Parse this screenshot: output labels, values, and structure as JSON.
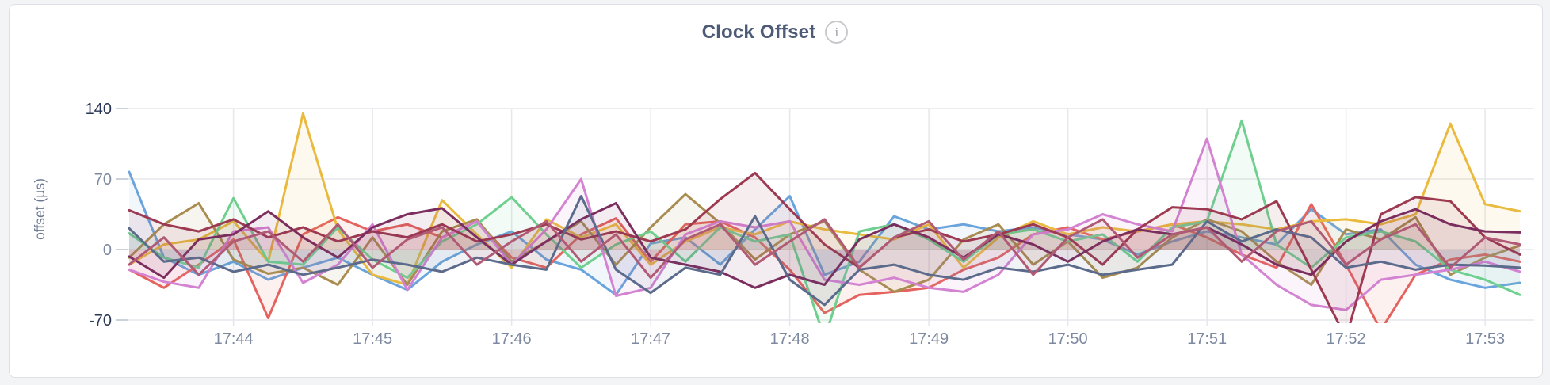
{
  "panel": {
    "title": "Clock Offset",
    "info_icon_glyph": "i"
  },
  "colors": {
    "page_bg": "#f3f4f6",
    "panel_bg": "#ffffff",
    "panel_border": "#dcdfe3",
    "title_text": "#4d5b76",
    "info_icon": "#9ba0a6",
    "grid": "#e6e7eb",
    "tick_dash": "#ccd2dd",
    "axis_text": "#7d89a0",
    "axis_text_emphasis": "#2a3655",
    "axis_title_text": "#6b7890"
  },
  "chart_data": {
    "type": "line",
    "title": "Clock Offset",
    "xlabel": "",
    "ylabel": "offset (µs)",
    "legend": "none",
    "grid": true,
    "x_start": "17:43:15",
    "x_end": "17:53:15",
    "x_interval_seconds": 15,
    "x_tick_labels": [
      "17:44",
      "17:45",
      "17:46",
      "17:47",
      "17:48",
      "17:49",
      "17:50",
      "17:51",
      "17:52",
      "17:53"
    ],
    "x_tick_indices": [
      3,
      7,
      11,
      15,
      19,
      23,
      27,
      31,
      35,
      39
    ],
    "y_ticks": [
      {
        "label": "140",
        "value": 140,
        "emphasis": true
      },
      {
        "label": "70",
        "value": 70,
        "emphasis": false
      },
      {
        "label": "0",
        "value": 0,
        "emphasis": false
      },
      {
        "label": "-70",
        "value": -70,
        "emphasis": true
      }
    ],
    "y_unit": "µs",
    "ylim_visible": [
      -73,
      175
    ],
    "fill_opacity": 0.09,
    "series": [
      {
        "name": "series-blue",
        "color": "#6aa4dc",
        "values": [
          77,
          -8,
          -25,
          -12,
          -30,
          -18,
          -8,
          -25,
          -40,
          -12,
          5,
          18,
          -10,
          -20,
          -45,
          6,
          12,
          -15,
          20,
          53,
          -25,
          -12,
          33,
          20,
          25,
          18,
          22,
          15,
          10,
          -5,
          8,
          18,
          12,
          5,
          40,
          15,
          20,
          -15,
          -30,
          -38,
          -33
        ]
      },
      {
        "name": "series-coral",
        "color": "#e4635e",
        "values": [
          -20,
          -38,
          -15,
          10,
          -68,
          15,
          32,
          18,
          25,
          12,
          28,
          -8,
          -18,
          15,
          31,
          -12,
          25,
          28,
          12,
          -20,
          -63,
          -45,
          -42,
          -38,
          -20,
          -8,
          15,
          22,
          10,
          18,
          25,
          12,
          -5,
          -18,
          45,
          -15,
          -80,
          -25,
          -10,
          -5,
          -12
        ]
      },
      {
        "name": "series-gold",
        "color": "#eaba3f",
        "values": [
          -15,
          5,
          10,
          28,
          -12,
          135,
          20,
          -25,
          -35,
          49,
          15,
          -18,
          30,
          12,
          25,
          -15,
          8,
          22,
          15,
          28,
          20,
          15,
          10,
          25,
          -18,
          12,
          28,
          15,
          22,
          18,
          25,
          28,
          25,
          20,
          28,
          30,
          25,
          35,
          125,
          45,
          38
        ]
      },
      {
        "name": "series-khaki",
        "color": "#a98c4f",
        "values": [
          -8,
          25,
          46,
          -10,
          -24,
          -18,
          -35,
          12,
          -35,
          18,
          30,
          -12,
          8,
          28,
          -15,
          22,
          55,
          26,
          -10,
          15,
          28,
          -20,
          -42,
          -30,
          10,
          25,
          -15,
          8,
          -28,
          -18,
          12,
          30,
          18,
          -12,
          -35,
          20,
          10,
          32,
          -25,
          -8,
          4
        ]
      },
      {
        "name": "series-green",
        "color": "#6fcf8f",
        "values": [
          16,
          -8,
          -18,
          51,
          -12,
          -15,
          22,
          -10,
          -28,
          8,
          25,
          52,
          15,
          -18,
          5,
          18,
          -12,
          22,
          8,
          15,
          -88,
          18,
          25,
          10,
          -12,
          15,
          20,
          8,
          15,
          -12,
          22,
          28,
          128,
          5,
          -18,
          12,
          18,
          8,
          -20,
          -30,
          -45
        ]
      },
      {
        "name": "series-orchid",
        "color": "#d383d1",
        "values": [
          -20,
          -32,
          -38,
          18,
          22,
          -33,
          -15,
          25,
          -40,
          12,
          28,
          -15,
          20,
          70,
          -46,
          -38,
          15,
          28,
          22,
          28,
          -30,
          -35,
          -28,
          -38,
          -42,
          -25,
          15,
          20,
          35,
          25,
          18,
          110,
          -5,
          -35,
          -55,
          -60,
          -30,
          -25,
          -20,
          -12,
          -22
        ]
      },
      {
        "name": "series-wine",
        "color": "#9d3a52",
        "values": [
          39,
          25,
          18,
          30,
          12,
          22,
          8,
          18,
          12,
          25,
          8,
          15,
          25,
          10,
          18,
          8,
          20,
          50,
          76,
          40,
          5,
          -18,
          12,
          20,
          8,
          15,
          25,
          12,
          -15,
          20,
          42,
          40,
          30,
          48,
          -20,
          -88,
          35,
          52,
          48,
          12,
          -5
        ]
      },
      {
        "name": "series-plum",
        "color": "#7b2d5e",
        "values": [
          -7,
          -28,
          10,
          15,
          38,
          12,
          -8,
          22,
          35,
          41,
          12,
          -15,
          8,
          30,
          46,
          -8,
          -15,
          -22,
          -38,
          -25,
          -35,
          10,
          25,
          12,
          -8,
          15,
          5,
          -12,
          8,
          20,
          15,
          22,
          5,
          -15,
          -25,
          8,
          28,
          40,
          25,
          18,
          17
        ]
      },
      {
        "name": "series-slate",
        "color": "#5c6a8c",
        "values": [
          21,
          -12,
          -8,
          -22,
          -15,
          -25,
          -18,
          -10,
          -15,
          -22,
          -8,
          -15,
          -20,
          53,
          -20,
          -43,
          -18,
          -25,
          33,
          -30,
          -55,
          -20,
          -15,
          -25,
          -30,
          -18,
          -22,
          -15,
          -25,
          -20,
          -15,
          28,
          8,
          20,
          12,
          -18,
          -12,
          -20,
          -15,
          -16,
          -18
        ]
      },
      {
        "name": "series-berry",
        "color": "#b05a75",
        "values": [
          -15,
          12,
          -25,
          8,
          18,
          -12,
          25,
          -18,
          10,
          22,
          -15,
          8,
          28,
          -12,
          15,
          -28,
          10,
          25,
          -15,
          8,
          30,
          -18,
          12,
          28,
          -10,
          18,
          -25,
          12,
          30,
          -8,
          15,
          22,
          -12,
          18,
          28,
          -15,
          10,
          25,
          -18,
          12,
          5
        ]
      }
    ]
  }
}
